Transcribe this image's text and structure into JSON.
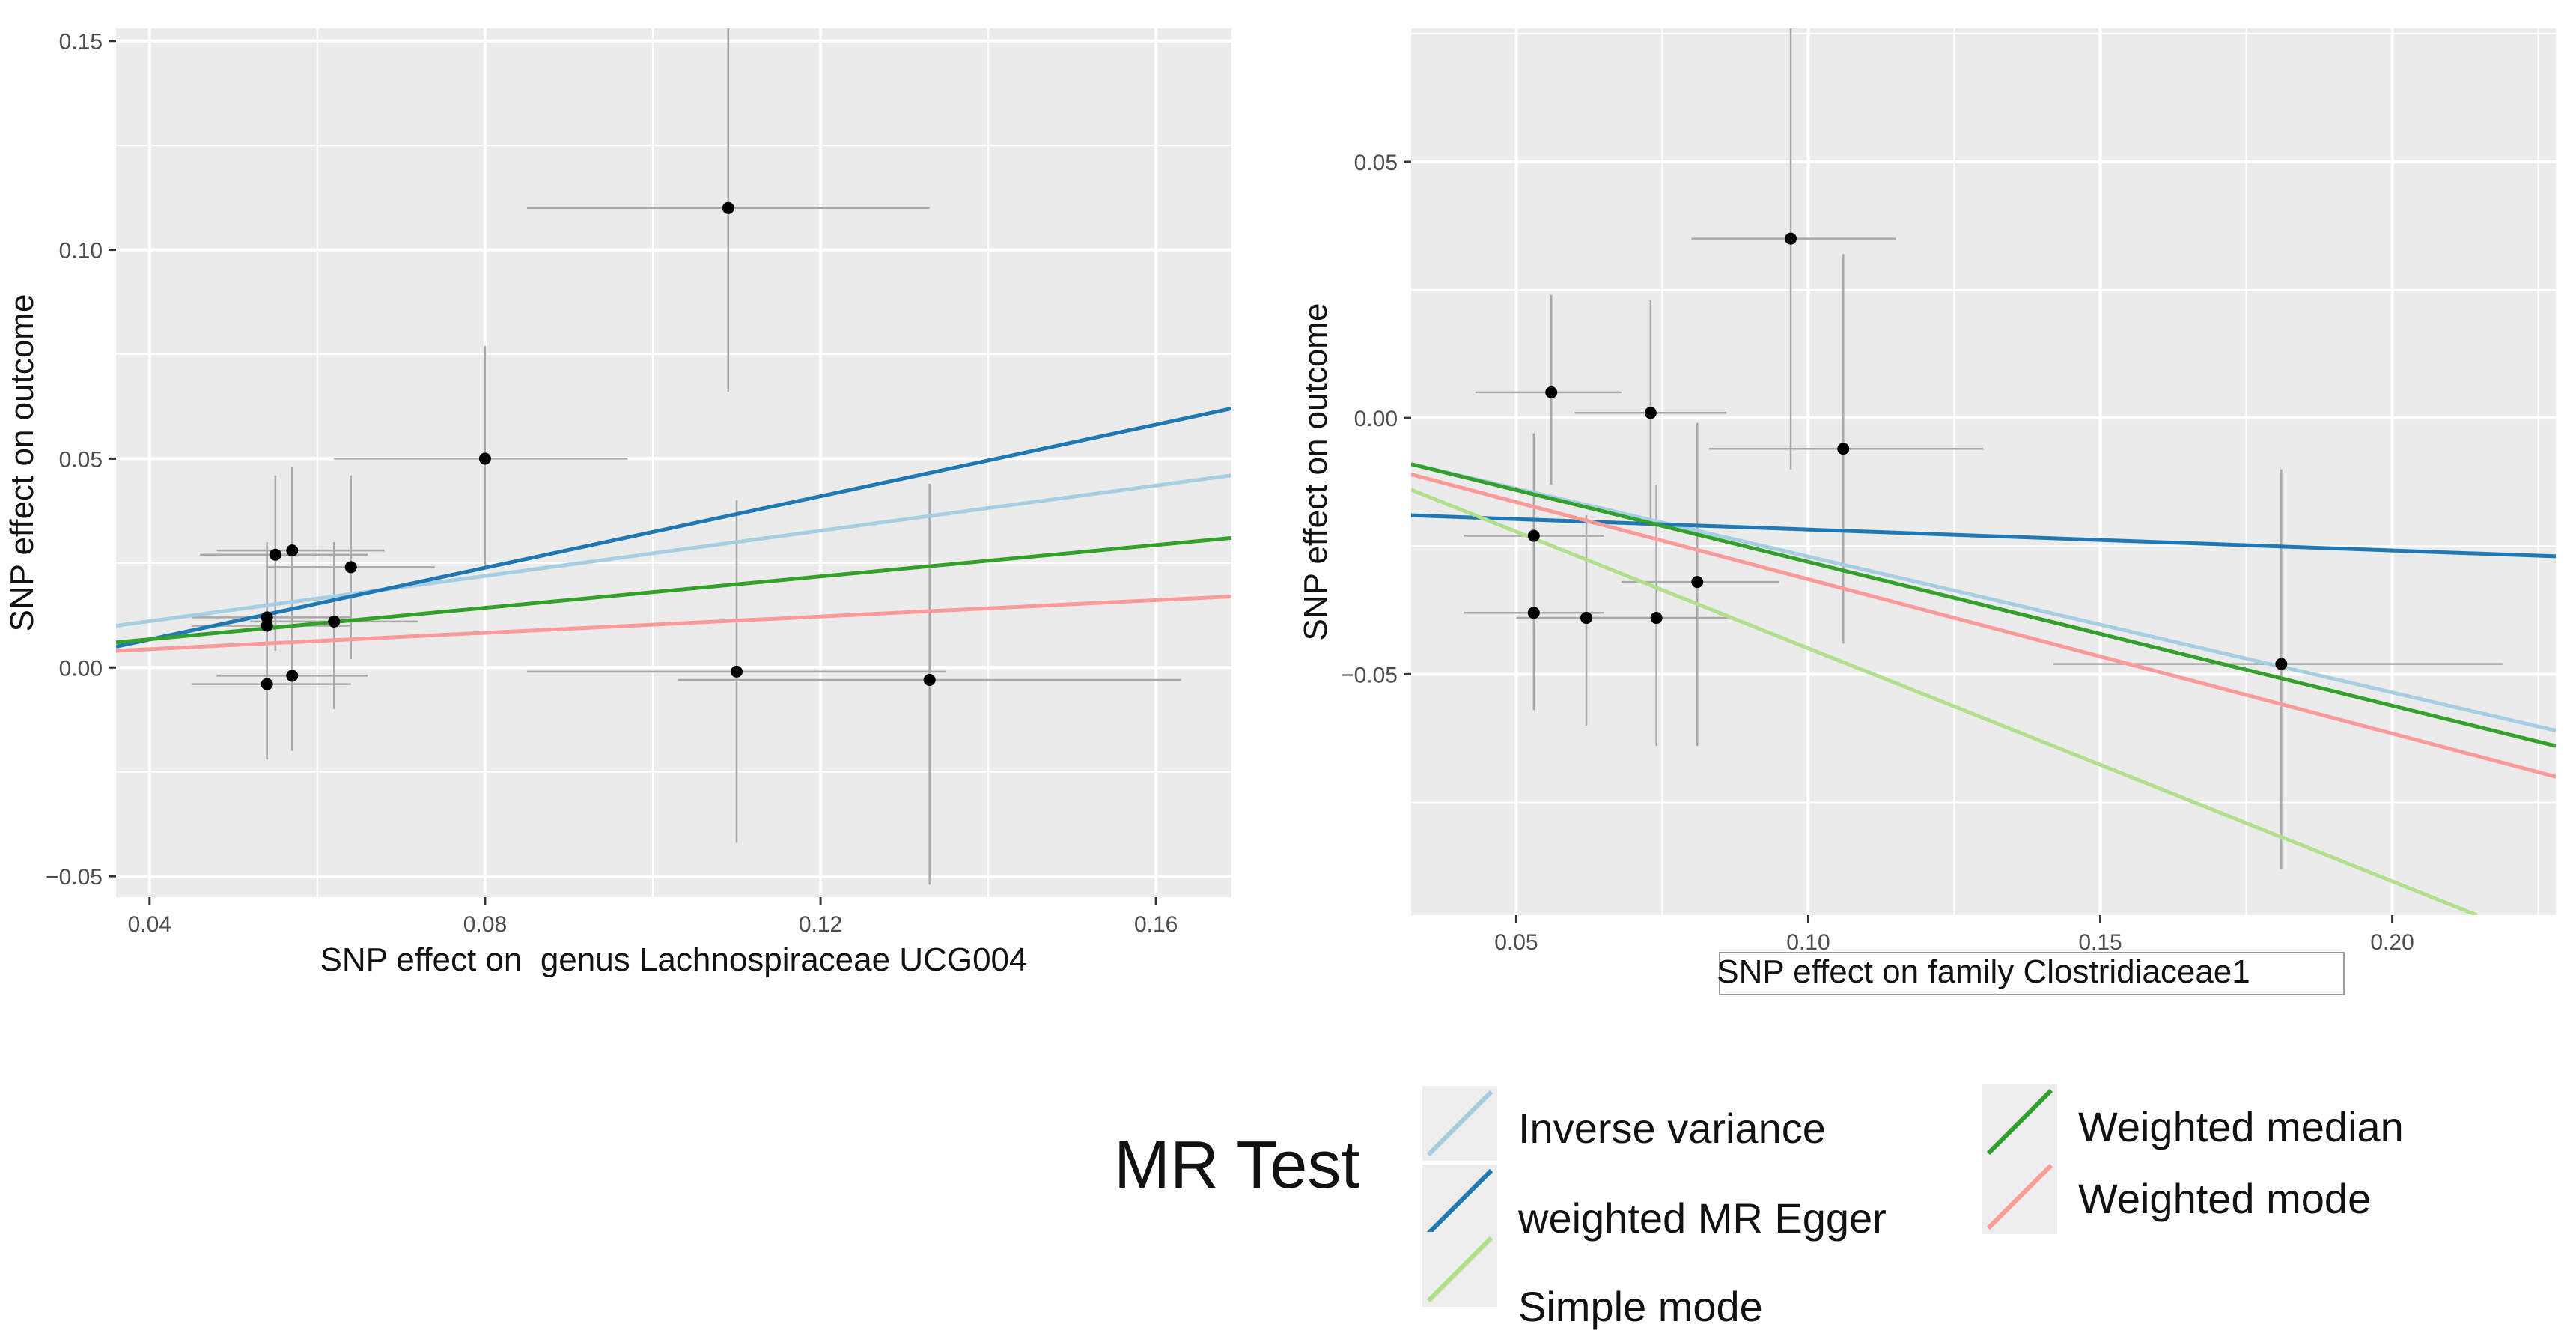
{
  "chart_data": [
    {
      "type": "scatter",
      "xlabel": "SNP effect on  genus Lachnospiraceae UCG004",
      "ylabel": "SNP effect on outcome",
      "xlim": [
        0.036,
        0.169
      ],
      "ylim": [
        -0.055,
        0.153
      ],
      "xticks": [
        {
          "value": 0.04,
          "label": "0.04"
        },
        {
          "value": 0.08,
          "label": "0.08"
        },
        {
          "value": 0.12,
          "label": "0.12"
        },
        {
          "value": 0.16,
          "label": "0.16"
        }
      ],
      "yticks": [
        {
          "value": -0.05,
          "label": "−0.05"
        },
        {
          "value": 0.0,
          "label": "0.00"
        },
        {
          "value": 0.05,
          "label": "0.05"
        },
        {
          "value": 0.1,
          "label": "0.10"
        },
        {
          "value": 0.15,
          "label": "0.15"
        }
      ],
      "grid": true,
      "points": [
        {
          "x": 0.055,
          "y": 0.027,
          "x_lo": 0.046,
          "x_hi": 0.066,
          "y_lo": 0.004,
          "y_hi": 0.046
        },
        {
          "x": 0.057,
          "y": 0.028,
          "x_lo": 0.048,
          "x_hi": 0.068,
          "y_lo": 0.008,
          "y_hi": 0.048
        },
        {
          "x": 0.054,
          "y": 0.012,
          "x_lo": 0.045,
          "x_hi": 0.064,
          "y_lo": -0.006,
          "y_hi": 0.03
        },
        {
          "x": 0.054,
          "y": 0.01,
          "x_lo": 0.045,
          "x_hi": 0.064,
          "y_lo": -0.01,
          "y_hi": 0.028
        },
        {
          "x": 0.062,
          "y": 0.011,
          "x_lo": 0.052,
          "x_hi": 0.072,
          "y_lo": -0.01,
          "y_hi": 0.03
        },
        {
          "x": 0.064,
          "y": 0.024,
          "x_lo": 0.054,
          "x_hi": 0.074,
          "y_lo": 0.002,
          "y_hi": 0.046
        },
        {
          "x": 0.054,
          "y": -0.004,
          "x_lo": 0.045,
          "x_hi": 0.064,
          "y_lo": -0.022,
          "y_hi": 0.014
        },
        {
          "x": 0.057,
          "y": -0.002,
          "x_lo": 0.048,
          "x_hi": 0.066,
          "y_lo": -0.02,
          "y_hi": 0.016
        },
        {
          "x": 0.08,
          "y": 0.05,
          "x_lo": 0.062,
          "x_hi": 0.097,
          "y_lo": 0.024,
          "y_hi": 0.077
        },
        {
          "x": 0.109,
          "y": 0.11,
          "x_lo": 0.085,
          "x_hi": 0.133,
          "y_lo": 0.066,
          "y_hi": 0.153
        },
        {
          "x": 0.11,
          "y": -0.001,
          "x_lo": 0.085,
          "x_hi": 0.135,
          "y_lo": -0.042,
          "y_hi": 0.04
        },
        {
          "x": 0.133,
          "y": -0.003,
          "x_lo": 0.103,
          "x_hi": 0.163,
          "y_lo": -0.052,
          "y_hi": 0.044
        }
      ],
      "lines": [
        {
          "method": "inverse_variance",
          "x": [
            0.036,
            0.169
          ],
          "y": [
            0.01,
            0.046
          ]
        },
        {
          "method": "mr_egger",
          "x": [
            0.036,
            0.169
          ],
          "y": [
            0.005,
            0.062
          ]
        },
        {
          "method": "weighted_median",
          "x": [
            0.036,
            0.169
          ],
          "y": [
            0.006,
            0.031
          ]
        },
        {
          "method": "weighted_mode",
          "x": [
            0.036,
            0.169
          ],
          "y": [
            0.004,
            0.017
          ]
        }
      ]
    },
    {
      "type": "scatter",
      "xlabel": "SNP effect on family Clostridiaceae1",
      "ylabel": "SNP effect on outcome",
      "xlim": [
        0.032,
        0.228
      ],
      "ylim": [
        -0.097,
        0.076
      ],
      "xticks": [
        {
          "value": 0.05,
          "label": "0.05"
        },
        {
          "value": 0.1,
          "label": "0.10"
        },
        {
          "value": 0.15,
          "label": "0.15"
        },
        {
          "value": 0.2,
          "label": "0.20"
        }
      ],
      "yticks": [
        {
          "value": -0.05,
          "label": "−0.05"
        },
        {
          "value": 0.0,
          "label": "0.00"
        },
        {
          "value": 0.05,
          "label": "0.05"
        }
      ],
      "grid": true,
      "points": [
        {
          "x": 0.056,
          "y": 0.005,
          "x_lo": 0.043,
          "x_hi": 0.068,
          "y_lo": -0.013,
          "y_hi": 0.024
        },
        {
          "x": 0.073,
          "y": 0.001,
          "x_lo": 0.06,
          "x_hi": 0.086,
          "y_lo": -0.02,
          "y_hi": 0.023
        },
        {
          "x": 0.097,
          "y": 0.035,
          "x_lo": 0.08,
          "x_hi": 0.115,
          "y_lo": -0.01,
          "y_hi": 0.076
        },
        {
          "x": 0.106,
          "y": -0.006,
          "x_lo": 0.083,
          "x_hi": 0.13,
          "y_lo": -0.044,
          "y_hi": 0.032
        },
        {
          "x": 0.053,
          "y": -0.023,
          "x_lo": 0.041,
          "x_hi": 0.065,
          "y_lo": -0.042,
          "y_hi": -0.003
        },
        {
          "x": 0.053,
          "y": -0.038,
          "x_lo": 0.041,
          "x_hi": 0.065,
          "y_lo": -0.057,
          "y_hi": -0.019
        },
        {
          "x": 0.062,
          "y": -0.039,
          "x_lo": 0.05,
          "x_hi": 0.074,
          "y_lo": -0.06,
          "y_hi": -0.019
        },
        {
          "x": 0.074,
          "y": -0.039,
          "x_lo": 0.061,
          "x_hi": 0.087,
          "y_lo": -0.064,
          "y_hi": -0.013
        },
        {
          "x": 0.081,
          "y": -0.032,
          "x_lo": 0.068,
          "x_hi": 0.095,
          "y_lo": -0.064,
          "y_hi": -0.001
        },
        {
          "x": 0.181,
          "y": -0.048,
          "x_lo": 0.142,
          "x_hi": 0.219,
          "y_lo": -0.088,
          "y_hi": -0.01
        }
      ],
      "lines": [
        {
          "method": "inverse_variance",
          "x": [
            0.032,
            0.228
          ],
          "y": [
            -0.009,
            -0.061
          ]
        },
        {
          "method": "mr_egger",
          "x": [
            0.032,
            0.228
          ],
          "y": [
            -0.019,
            -0.027
          ]
        },
        {
          "method": "simple_mode",
          "x": [
            0.032,
            0.2145
          ],
          "y": [
            -0.014,
            -0.097
          ]
        },
        {
          "method": "weighted_median",
          "x": [
            0.032,
            0.228
          ],
          "y": [
            -0.009,
            -0.064
          ]
        },
        {
          "method": "weighted_mode",
          "x": [
            0.032,
            0.228
          ],
          "y": [
            -0.011,
            -0.07
          ]
        }
      ]
    }
  ],
  "legend": {
    "title": "MR Test",
    "entries": [
      {
        "key": "inverse_variance",
        "label": "Inverse variance",
        "color": "#a6cee3"
      },
      {
        "key": "mr_egger",
        "label": "weighted MR Egger",
        "color": "#1f78b4"
      },
      {
        "key": "simple_mode",
        "label": "Simple mode",
        "color": "#b2df8a"
      },
      {
        "key": "weighted_median",
        "label": "Weighted median",
        "color": "#33a02c"
      },
      {
        "key": "weighted_mode",
        "label": "Weighted mode",
        "color": "#fb9a99"
      }
    ]
  },
  "colors": {
    "panel_background": "#ebebeb",
    "grid": "#ffffff",
    "error_bar": "#a8a8a8",
    "point": "#000000"
  }
}
